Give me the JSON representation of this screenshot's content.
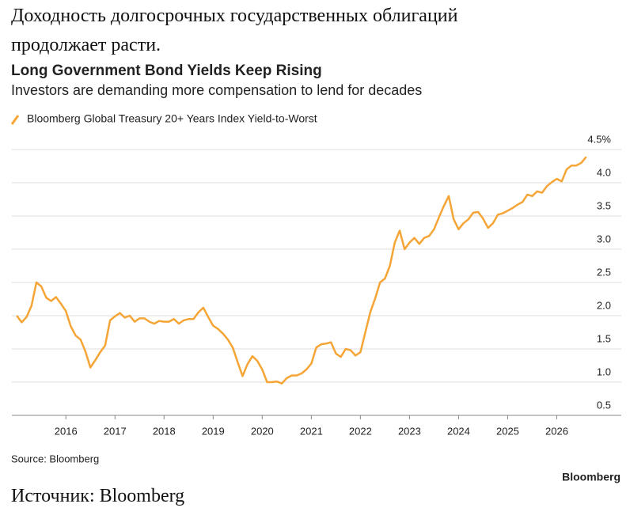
{
  "header": {
    "title": "Доходность долгосрочных государственных облигаций продолжает расти."
  },
  "chart_data": {
    "type": "line",
    "title": "Long Government Bond Yields Keep Rising",
    "subtitle": "Investors are demanding more compensation to lend for decades",
    "source": "Source: Bloomberg",
    "brand": "Bloomberg",
    "x": [
      2015,
      2015.1,
      2015.2,
      2015.3,
      2015.4,
      2015.5,
      2015.6,
      2015.7,
      2015.8,
      2015.9,
      2016,
      2016.1,
      2016.2,
      2016.3,
      2016.4,
      2016.5,
      2016.6,
      2016.7,
      2016.8,
      2016.9,
      2017,
      2017.1,
      2017.2,
      2017.3,
      2017.4,
      2017.5,
      2017.6,
      2017.7,
      2017.8,
      2017.9,
      2018,
      2018.1,
      2018.2,
      2018.3,
      2018.4,
      2018.5,
      2018.6,
      2018.7,
      2018.8,
      2018.9,
      2019,
      2019.1,
      2019.2,
      2019.3,
      2019.4,
      2019.5,
      2019.6,
      2019.7,
      2019.8,
      2019.9,
      2020,
      2020.1,
      2020.2,
      2020.3,
      2020.4,
      2020.5,
      2020.6,
      2020.7,
      2020.8,
      2020.9,
      2021,
      2021.1,
      2021.2,
      2021.3,
      2021.4,
      2021.5,
      2021.6,
      2021.7,
      2021.8,
      2021.9,
      2022,
      2022.1,
      2022.2,
      2022.3,
      2022.4,
      2022.5,
      2022.6,
      2022.7,
      2022.8,
      2022.9,
      2023,
      2023.1,
      2023.2,
      2023.3,
      2023.4,
      2023.5,
      2023.6,
      2023.7,
      2023.8,
      2023.9,
      2024,
      2024.1,
      2024.2,
      2024.3,
      2024.4,
      2024.5,
      2024.6,
      2024.7,
      2024.8,
      2024.9,
      2025,
      2025.1,
      2025.2,
      2025.3,
      2025.4,
      2025.5,
      2025.6,
      2025.7,
      2025.8,
      2025.9,
      2026,
      2026.1,
      2026.2,
      2026.3,
      2026.4,
      2026.5,
      2026.6
    ],
    "series": [
      {
        "name": "Bloomberg Global Treasury 20+ Years Index Yield-to-Worst",
        "color": "#f5a536",
        "values": [
          2.0,
          1.9,
          1.98,
          2.15,
          2.5,
          2.44,
          2.27,
          2.22,
          2.28,
          2.18,
          2.07,
          1.84,
          1.7,
          1.64,
          1.46,
          1.22,
          1.33,
          1.45,
          1.55,
          1.93,
          1.99,
          2.04,
          1.97,
          2.0,
          1.91,
          1.96,
          1.96,
          1.91,
          1.88,
          1.92,
          1.91,
          1.91,
          1.95,
          1.88,
          1.93,
          1.95,
          1.95,
          2.05,
          2.12,
          1.98,
          1.85,
          1.8,
          1.73,
          1.64,
          1.52,
          1.3,
          1.09,
          1.27,
          1.39,
          1.32,
          1.19,
          1.0,
          1.0,
          1.01,
          0.98,
          1.06,
          1.1,
          1.1,
          1.13,
          1.19,
          1.28,
          1.52,
          1.57,
          1.58,
          1.6,
          1.43,
          1.38,
          1.5,
          1.48,
          1.4,
          1.45,
          1.75,
          2.05,
          2.26,
          2.5,
          2.56,
          2.75,
          3.1,
          3.28,
          3.0,
          3.1,
          3.17,
          3.08,
          3.17,
          3.2,
          3.3,
          3.48,
          3.65,
          3.8,
          3.45,
          3.3,
          3.39,
          3.45,
          3.55,
          3.56,
          3.46,
          3.32,
          3.39,
          3.52,
          3.54,
          3.58,
          3.62,
          3.67,
          3.71,
          3.82,
          3.8,
          3.87,
          3.85,
          3.95,
          4.01,
          4.06,
          4.02,
          4.2,
          4.26,
          4.26,
          4.3,
          4.39
        ]
      }
    ],
    "xlim": [
      2014.9,
      2026.75
    ],
    "xticks": [
      2016,
      2017,
      2018,
      2019,
      2020,
      2021,
      2022,
      2023,
      2024,
      2025,
      2026
    ],
    "ylim": [
      0.5,
      4.5
    ],
    "yticks": [
      0.5,
      {
        "value": 1,
        "label": "1.0"
      },
      1.5,
      {
        "value": 2,
        "label": "2.0"
      },
      2.5,
      {
        "value": 3,
        "label": "3.0"
      },
      3.5,
      {
        "value": 4,
        "label": "4.0"
      },
      {
        "value": 4.5,
        "label": "4.5%"
      }
    ],
    "grid": true
  },
  "caption": "Источник: Bloomberg"
}
